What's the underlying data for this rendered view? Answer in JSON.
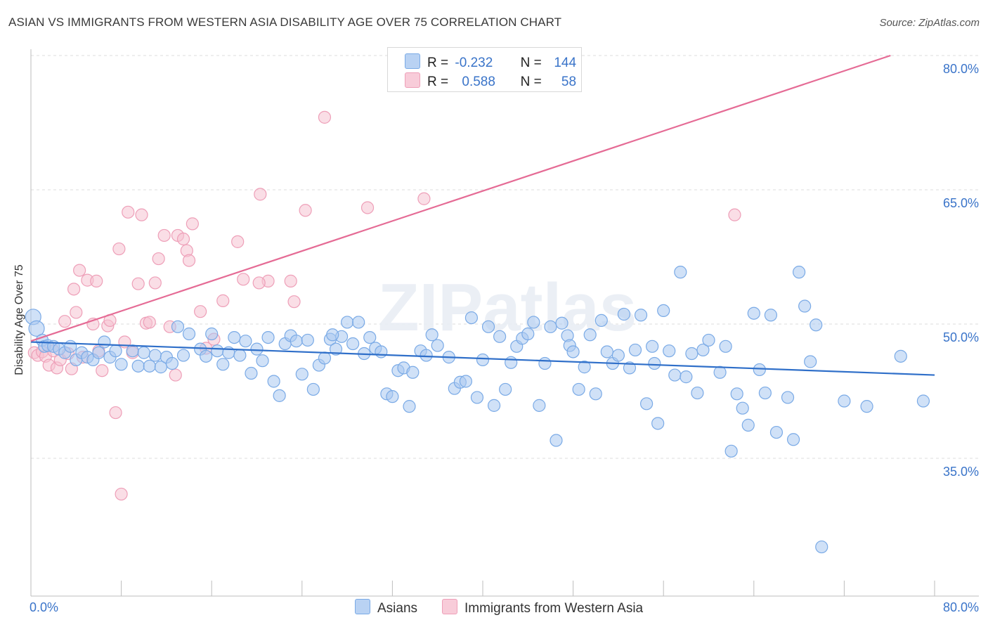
{
  "header": {
    "title": "ASIAN VS IMMIGRANTS FROM WESTERN ASIA DISABILITY AGE OVER 75 CORRELATION CHART",
    "source": "Source: ZipAtlas.com"
  },
  "watermark": "ZIPatlas",
  "legend_stats": [
    {
      "r_label": "R =",
      "r_value": "-0.232",
      "n_label": "N =",
      "n_value": "144",
      "color": "#a9c8f0"
    },
    {
      "r_label": "R =",
      "r_value": "0.588",
      "n_label": "N =",
      "n_value": "58",
      "color": "#f4b6c8"
    }
  ],
  "chart_data": {
    "type": "scatter",
    "title": "ASIAN VS IMMIGRANTS FROM WESTERN ASIA DISABILITY AGE OVER 75 CORRELATION CHART",
    "ylabel": "Disability Age Over 75",
    "xlabel": "",
    "xlim": [
      0,
      80
    ],
    "ylim": [
      20,
      82
    ],
    "x_tick_labels": [
      "0.0%",
      "80.0%"
    ],
    "y_tick_values": [
      35,
      50,
      65,
      80
    ],
    "y_tick_labels": [
      "35.0%",
      "50.0%",
      "65.0%",
      "80.0%"
    ],
    "grid": true,
    "legend_position": "bottom-center",
    "series": [
      {
        "name": "Asians",
        "color": "#7aaae6",
        "fill": "#aac8f0",
        "trend": {
          "x": [
            0,
            80
          ],
          "y": [
            48.0,
            44.3
          ]
        },
        "points": [
          [
            0.2,
            50.8
          ],
          [
            0.5,
            49.5
          ],
          [
            1.0,
            48.2
          ],
          [
            1.2,
            47.5
          ],
          [
            1.5,
            47.6
          ],
          [
            2.0,
            47.5
          ],
          [
            2.5,
            47.2
          ],
          [
            3.0,
            46.8
          ],
          [
            3.5,
            47.5
          ],
          [
            4.0,
            46.0
          ],
          [
            4.5,
            46.8
          ],
          [
            5.0,
            46.3
          ],
          [
            5.5,
            46.0
          ],
          [
            6.0,
            46.8
          ],
          [
            6.5,
            48.0
          ],
          [
            7.0,
            46.3
          ],
          [
            7.5,
            47.0
          ],
          [
            8.0,
            45.5
          ],
          [
            9.0,
            47.0
          ],
          [
            9.5,
            45.3
          ],
          [
            10.0,
            46.8
          ],
          [
            10.5,
            45.3
          ],
          [
            11.0,
            46.5
          ],
          [
            11.5,
            45.2
          ],
          [
            12.0,
            46.3
          ],
          [
            12.5,
            45.6
          ],
          [
            13.0,
            49.7
          ],
          [
            13.5,
            46.5
          ],
          [
            14.0,
            48.9
          ],
          [
            15.0,
            47.2
          ],
          [
            15.5,
            46.4
          ],
          [
            16.0,
            48.9
          ],
          [
            16.5,
            47.0
          ],
          [
            17.0,
            45.5
          ],
          [
            17.5,
            46.8
          ],
          [
            18.0,
            48.5
          ],
          [
            18.5,
            46.5
          ],
          [
            19.0,
            48.1
          ],
          [
            19.5,
            44.5
          ],
          [
            20.0,
            47.2
          ],
          [
            20.5,
            45.9
          ],
          [
            21.0,
            48.5
          ],
          [
            21.5,
            43.6
          ],
          [
            22.0,
            42.0
          ],
          [
            22.5,
            47.8
          ],
          [
            23.0,
            48.7
          ],
          [
            23.5,
            48.1
          ],
          [
            24.0,
            44.4
          ],
          [
            24.5,
            48.2
          ],
          [
            25.0,
            42.7
          ],
          [
            25.5,
            45.4
          ],
          [
            26.0,
            46.2
          ],
          [
            26.5,
            48.3
          ],
          [
            27.0,
            47.2
          ],
          [
            27.5,
            48.6
          ],
          [
            28.0,
            50.2
          ],
          [
            28.5,
            47.8
          ],
          [
            29.0,
            50.2
          ],
          [
            29.5,
            46.7
          ],
          [
            30.0,
            48.5
          ],
          [
            30.5,
            47.3
          ],
          [
            31.0,
            46.9
          ],
          [
            31.5,
            42.2
          ],
          [
            32.0,
            41.9
          ],
          [
            32.5,
            44.8
          ],
          [
            33.0,
            45.1
          ],
          [
            33.5,
            40.8
          ],
          [
            34.5,
            47.0
          ],
          [
            35.0,
            46.5
          ],
          [
            35.5,
            48.8
          ],
          [
            36.0,
            47.6
          ],
          [
            37.0,
            46.3
          ],
          [
            37.5,
            42.8
          ],
          [
            38.0,
            43.5
          ],
          [
            38.5,
            43.6
          ],
          [
            39.0,
            50.7
          ],
          [
            39.5,
            41.8
          ],
          [
            40.0,
            46.0
          ],
          [
            40.5,
            49.7
          ],
          [
            41.0,
            40.9
          ],
          [
            41.5,
            48.6
          ],
          [
            42.0,
            42.7
          ],
          [
            42.5,
            45.7
          ],
          [
            43.0,
            47.5
          ],
          [
            43.5,
            48.4
          ],
          [
            44.0,
            48.9
          ],
          [
            44.5,
            50.2
          ],
          [
            45.0,
            40.9
          ],
          [
            45.5,
            45.6
          ],
          [
            46.0,
            49.7
          ],
          [
            46.5,
            37.0
          ],
          [
            47.0,
            50.1
          ],
          [
            47.5,
            48.7
          ],
          [
            47.7,
            47.6
          ],
          [
            48.0,
            46.9
          ],
          [
            48.5,
            42.7
          ],
          [
            49.0,
            45.2
          ],
          [
            49.5,
            48.8
          ],
          [
            50.0,
            42.2
          ],
          [
            50.5,
            50.4
          ],
          [
            51.0,
            46.9
          ],
          [
            51.5,
            45.6
          ],
          [
            52.0,
            46.5
          ],
          [
            52.5,
            51.1
          ],
          [
            53.0,
            45.1
          ],
          [
            53.5,
            47.1
          ],
          [
            54.0,
            51.0
          ],
          [
            54.5,
            41.1
          ],
          [
            55.0,
            47.5
          ],
          [
            55.5,
            38.9
          ],
          [
            56.0,
            51.5
          ],
          [
            56.5,
            47.0
          ],
          [
            57.0,
            44.3
          ],
          [
            57.5,
            55.8
          ],
          [
            58.0,
            44.1
          ],
          [
            58.5,
            46.7
          ],
          [
            59.0,
            42.3
          ],
          [
            59.5,
            47.1
          ],
          [
            60.0,
            48.2
          ],
          [
            61.0,
            44.6
          ],
          [
            61.5,
            47.5
          ],
          [
            62.0,
            35.8
          ],
          [
            62.5,
            42.2
          ],
          [
            63.0,
            40.6
          ],
          [
            63.5,
            38.7
          ],
          [
            64.0,
            51.2
          ],
          [
            64.5,
            44.9
          ],
          [
            65.0,
            42.3
          ],
          [
            65.5,
            51.0
          ],
          [
            66.0,
            37.9
          ],
          [
            67.0,
            41.8
          ],
          [
            67.5,
            37.1
          ],
          [
            68.0,
            55.8
          ],
          [
            68.5,
            52.0
          ],
          [
            69.0,
            45.8
          ],
          [
            69.5,
            49.9
          ],
          [
            70.0,
            25.1
          ],
          [
            72.0,
            41.4
          ],
          [
            74.0,
            40.8
          ],
          [
            77.0,
            46.4
          ],
          [
            79.0,
            41.4
          ],
          [
            26.7,
            48.8
          ],
          [
            33.8,
            44.6
          ],
          [
            55.2,
            45.6
          ]
        ]
      },
      {
        "name": "Immigrants from Western Asia",
        "color": "#ee9fb8",
        "fill": "#f6c3d2",
        "trend": {
          "x": [
            0,
            76.1
          ],
          "y": [
            48.1,
            80.0
          ]
        },
        "points": [
          [
            0.3,
            46.8
          ],
          [
            0.6,
            46.5
          ],
          [
            1.0,
            46.9
          ],
          [
            1.3,
            46.4
          ],
          [
            1.6,
            45.4
          ],
          [
            2.0,
            47.0
          ],
          [
            2.3,
            45.1
          ],
          [
            2.6,
            46.0
          ],
          [
            3.0,
            50.3
          ],
          [
            3.3,
            46.7
          ],
          [
            3.6,
            45.0
          ],
          [
            3.8,
            53.9
          ],
          [
            4.0,
            51.3
          ],
          [
            4.3,
            56.0
          ],
          [
            4.6,
            46.3
          ],
          [
            5.0,
            54.9
          ],
          [
            5.5,
            50.0
          ],
          [
            5.8,
            54.8
          ],
          [
            6.0,
            47.0
          ],
          [
            6.3,
            44.8
          ],
          [
            6.8,
            49.8
          ],
          [
            7.0,
            50.4
          ],
          [
            7.5,
            40.1
          ],
          [
            7.8,
            58.4
          ],
          [
            8.0,
            31.0
          ],
          [
            8.3,
            48.0
          ],
          [
            8.6,
            62.5
          ],
          [
            9.0,
            46.8
          ],
          [
            9.5,
            54.5
          ],
          [
            9.8,
            62.2
          ],
          [
            10.2,
            50.1
          ],
          [
            10.5,
            50.2
          ],
          [
            11.0,
            54.6
          ],
          [
            11.3,
            57.3
          ],
          [
            11.8,
            59.9
          ],
          [
            12.3,
            49.7
          ],
          [
            12.8,
            44.3
          ],
          [
            13.0,
            59.9
          ],
          [
            13.5,
            59.5
          ],
          [
            13.8,
            58.2
          ],
          [
            14.0,
            57.1
          ],
          [
            14.3,
            61.2
          ],
          [
            15.0,
            51.4
          ],
          [
            15.5,
            47.3
          ],
          [
            17.0,
            52.6
          ],
          [
            18.3,
            59.2
          ],
          [
            18.8,
            55.0
          ],
          [
            20.3,
            64.5
          ],
          [
            21.0,
            54.8
          ],
          [
            23.0,
            54.8
          ],
          [
            23.3,
            52.5
          ],
          [
            24.3,
            62.7
          ],
          [
            26.0,
            73.1
          ],
          [
            29.8,
            63.0
          ],
          [
            34.8,
            64.0
          ],
          [
            62.3,
            62.2
          ],
          [
            20.2,
            54.6
          ],
          [
            16.2,
            48.3
          ]
        ]
      }
    ]
  }
}
